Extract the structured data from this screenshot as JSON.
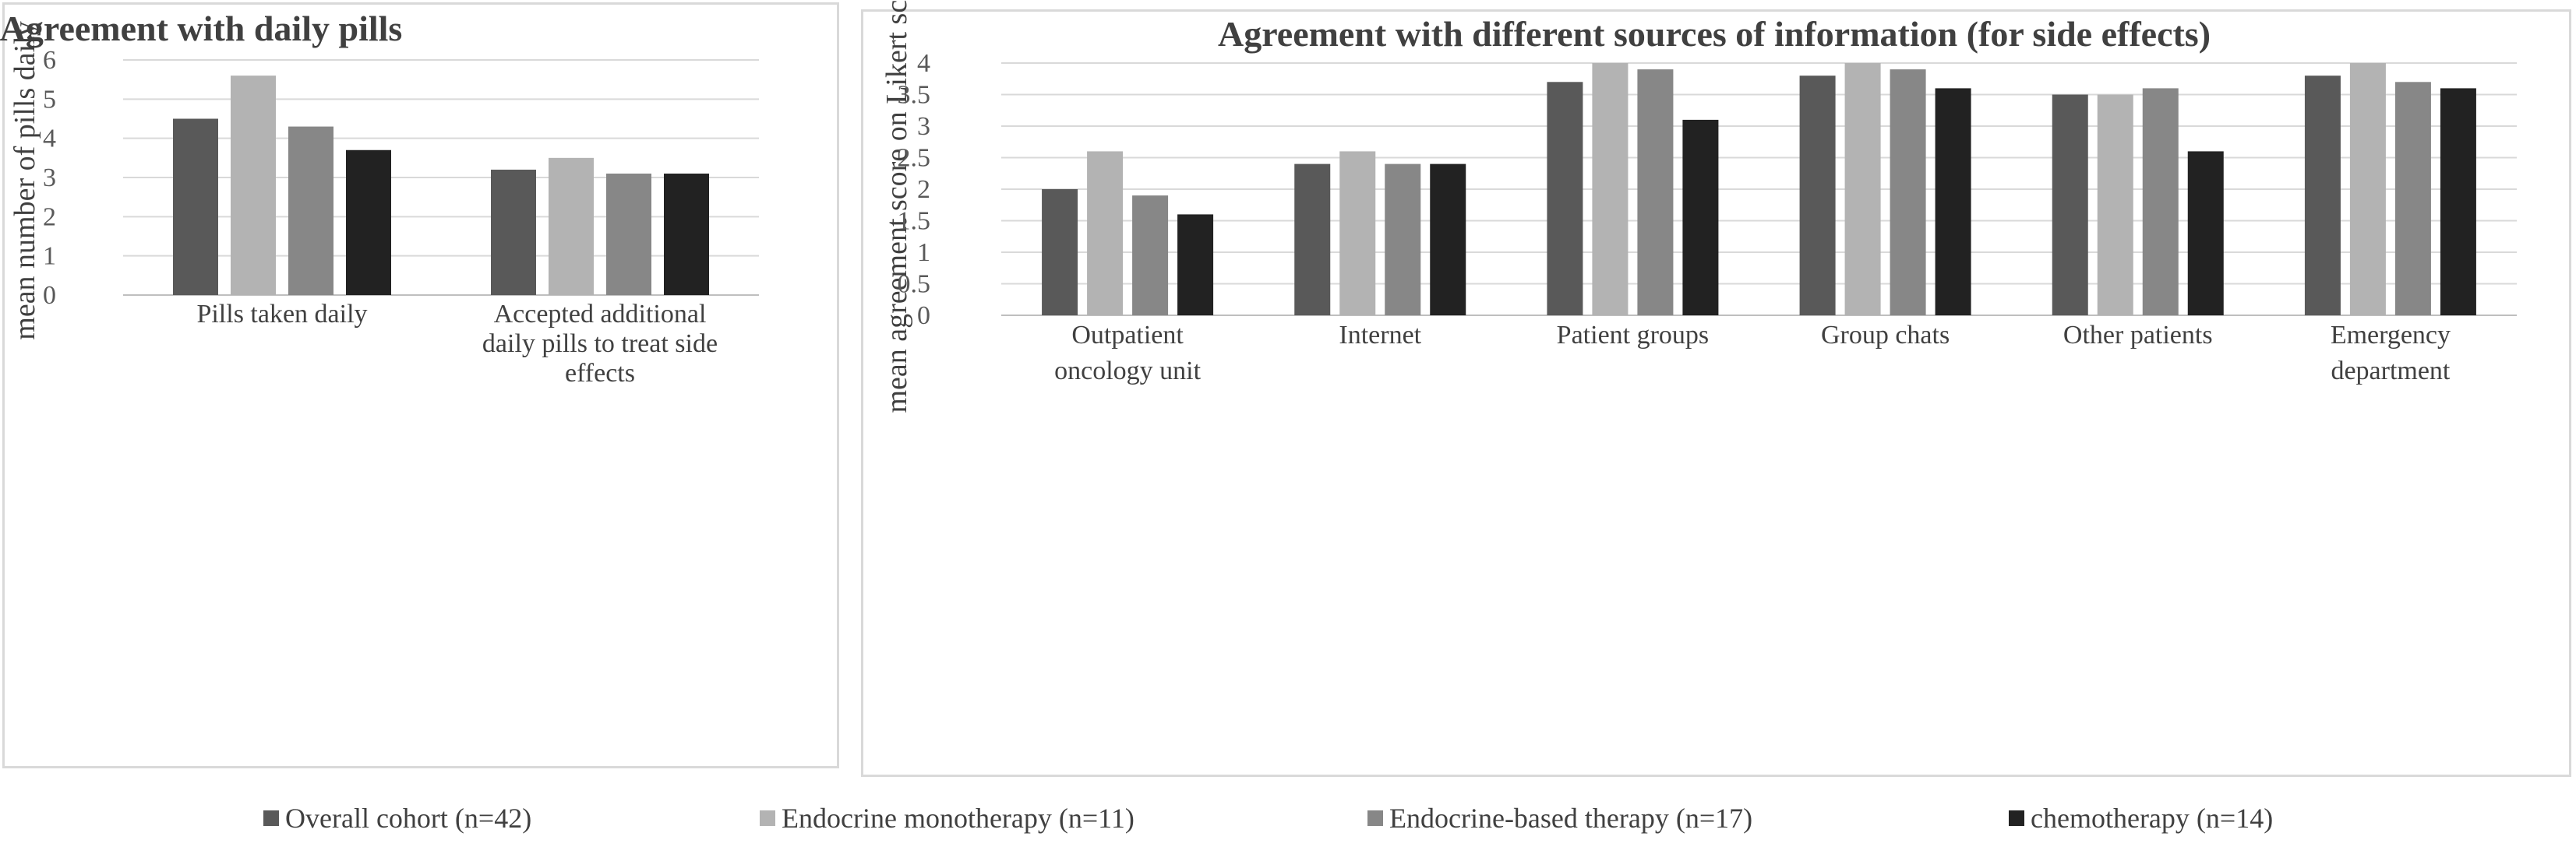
{
  "colors": {
    "grid": "#d9d9d9",
    "axis": "#bfbfbf",
    "series": [
      "#595959",
      "#b3b3b3",
      "#878787",
      "#222222"
    ]
  },
  "legend": [
    {
      "name": "Overall cohort (n=42)",
      "color": "#595959"
    },
    {
      "name": "Endocrine monotherapy (n=11)",
      "color": "#b3b3b3"
    },
    {
      "name": "Endocrine-based therapy (n=17)",
      "color": "#878787"
    },
    {
      "name": "chemotherapy (n=14)",
      "color": "#222222"
    }
  ],
  "chart_data": [
    {
      "type": "bar",
      "title": "Agreement with daily pills",
      "xlabel": "",
      "ylabel": "mean number of pills daily",
      "ylim": [
        0,
        6
      ],
      "yticks": [
        "0",
        "1",
        "2",
        "3",
        "4",
        "5",
        "6"
      ],
      "grid": true,
      "legend": "bottom",
      "categories": [
        [
          "Pills taken daily"
        ],
        [
          "Accepted additional",
          "daily pills to treat side",
          "effects"
        ]
      ],
      "series": [
        {
          "name": "Overall cohort (n=42)",
          "values": [
            4.5,
            3.2
          ]
        },
        {
          "name": "Endocrine monotherapy (n=11)",
          "values": [
            5.6,
            3.5
          ]
        },
        {
          "name": "Endocrine-based therapy (n=17)",
          "values": [
            4.3,
            3.1
          ]
        },
        {
          "name": "chemotherapy (n=14)",
          "values": [
            3.7,
            3.1
          ]
        }
      ]
    },
    {
      "type": "bar",
      "title": "Agreement with different sources of information (for side effects)",
      "xlabel": "",
      "ylabel": "mean agreement score on Likert scale",
      "ylim": [
        0,
        4
      ],
      "yticks": [
        "0",
        "0.5",
        "1",
        "1.5",
        "2",
        "2.5",
        "3",
        "3.5",
        "4"
      ],
      "grid": true,
      "legend": "bottom",
      "categories": [
        [
          "Outpatient",
          "oncology unit"
        ],
        [
          "Internet"
        ],
        [
          "Patient groups"
        ],
        [
          "Group chats"
        ],
        [
          "Other patients"
        ],
        [
          "Emergency",
          "department"
        ]
      ],
      "series": [
        {
          "name": "Overall cohort (n=42)",
          "values": [
            2.0,
            2.4,
            3.7,
            3.8,
            3.5,
            3.8
          ]
        },
        {
          "name": "Endocrine monotherapy (n=11)",
          "values": [
            2.6,
            2.6,
            4.0,
            4.0,
            3.5,
            4.0
          ]
        },
        {
          "name": "Endocrine-based therapy (n=17)",
          "values": [
            1.9,
            2.4,
            3.9,
            3.9,
            3.6,
            3.7
          ]
        },
        {
          "name": "chemotherapy (n=14)",
          "values": [
            1.6,
            2.4,
            3.1,
            3.6,
            2.6,
            3.6
          ]
        }
      ]
    }
  ]
}
